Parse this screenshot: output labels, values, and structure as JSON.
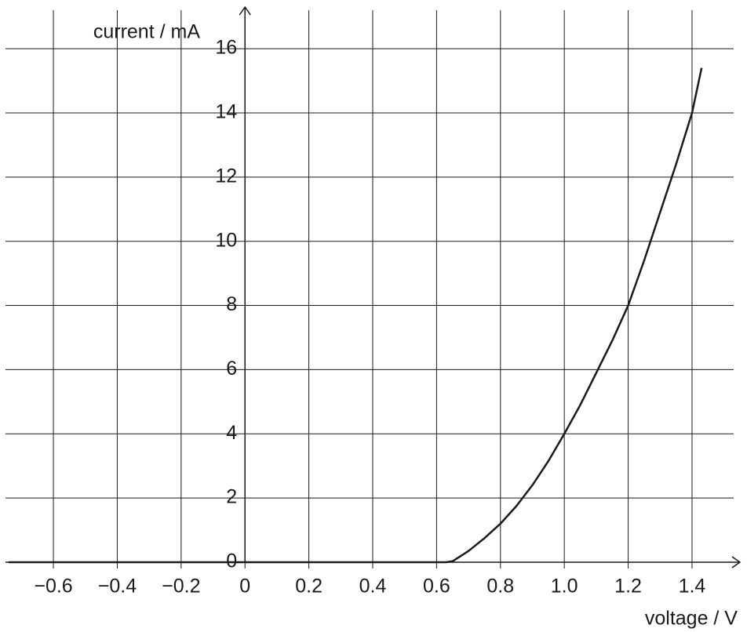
{
  "chart_data": {
    "type": "line",
    "x_label": "voltage / V",
    "y_label": "current / mA",
    "x": [
      -0.74,
      0.63,
      0.65,
      0.7,
      0.75,
      0.8,
      0.85,
      0.9,
      0.95,
      1.0,
      1.05,
      1.1,
      1.15,
      1.2,
      1.25,
      1.3,
      1.35,
      1.4,
      1.43
    ],
    "series": [
      {
        "color": "#1a1a1a",
        "values": [
          0,
          0,
          0.03,
          0.35,
          0.75,
          1.2,
          1.75,
          2.4,
          3.15,
          4.0,
          4.9,
          5.9,
          6.9,
          8.0,
          9.4,
          10.9,
          12.4,
          14.0,
          15.4
        ]
      }
    ],
    "xlim": [
      -0.75,
      1.55
    ],
    "ylim": [
      0,
      17.2
    ],
    "xticks": [
      {
        "value": -0.6,
        "label": "−0.6"
      },
      {
        "value": -0.4,
        "label": "−0.4"
      },
      {
        "value": -0.2,
        "label": "−0.2"
      },
      0,
      0.2,
      0.4,
      0.6,
      0.8,
      {
        "value": 1.0,
        "label": "1.0"
      },
      1.2,
      1.4
    ],
    "yticks": [
      0,
      2,
      4,
      6,
      8,
      10,
      12,
      14,
      16
    ],
    "grid": true
  }
}
